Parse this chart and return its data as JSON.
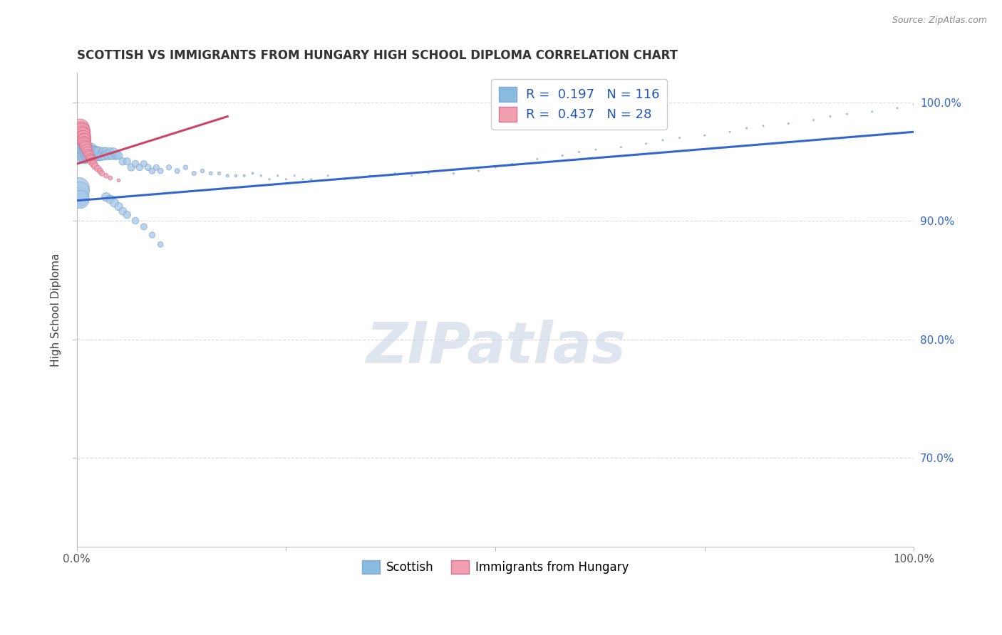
{
  "title": "SCOTTISH VS IMMIGRANTS FROM HUNGARY HIGH SCHOOL DIPLOMA CORRELATION CHART",
  "source": "Source: ZipAtlas.com",
  "ylabel": "High School Diploma",
  "watermark": "ZIPatlas",
  "R_scottish": 0.197,
  "N_scottish": 116,
  "R_hungary": 0.437,
  "N_hungary": 28,
  "scottish_color": "#a8c8e8",
  "scottish_edge": "#80a8cc",
  "hungary_color": "#f0a0b0",
  "hungary_edge": "#d87090",
  "trend_scottish": "#3366cc",
  "trend_hungary": "#cc4466",
  "legend_blue_patch": "#88bbdd",
  "legend_pink_patch": "#f0a0b0",
  "ytick_vals": [
    0.7,
    0.8,
    0.9,
    1.0
  ],
  "ytick_labels": [
    "70.0%",
    "80.0%",
    "90.0%",
    "100.0%"
  ],
  "xlim": [
    0.0,
    1.0
  ],
  "ylim": [
    0.625,
    1.025
  ],
  "trend_s_x0": 0.0,
  "trend_s_y0": 0.917,
  "trend_s_x1": 1.0,
  "trend_s_y1": 0.975,
  "trend_h_x0": 0.0,
  "trend_h_y0": 0.948,
  "trend_h_x1": 0.18,
  "trend_h_y1": 0.988,
  "scottish_x": [
    0.005,
    0.006,
    0.007,
    0.008,
    0.008,
    0.009,
    0.009,
    0.01,
    0.01,
    0.011,
    0.011,
    0.012,
    0.012,
    0.013,
    0.013,
    0.014,
    0.015,
    0.015,
    0.016,
    0.016,
    0.017,
    0.018,
    0.018,
    0.019,
    0.02,
    0.021,
    0.022,
    0.023,
    0.024,
    0.025,
    0.026,
    0.027,
    0.028,
    0.03,
    0.032,
    0.033,
    0.035,
    0.036,
    0.038,
    0.04,
    0.042,
    0.044,
    0.046,
    0.048,
    0.05,
    0.055,
    0.06,
    0.065,
    0.07,
    0.075,
    0.08,
    0.085,
    0.09,
    0.095,
    0.1,
    0.11,
    0.12,
    0.13,
    0.14,
    0.15,
    0.16,
    0.17,
    0.18,
    0.19,
    0.2,
    0.21,
    0.22,
    0.23,
    0.24,
    0.25,
    0.26,
    0.27,
    0.28,
    0.3,
    0.32,
    0.35,
    0.38,
    0.4,
    0.42,
    0.45,
    0.48,
    0.5,
    0.52,
    0.55,
    0.58,
    0.6,
    0.62,
    0.65,
    0.68,
    0.7,
    0.72,
    0.75,
    0.78,
    0.8,
    0.82,
    0.85,
    0.88,
    0.9,
    0.92,
    0.95,
    0.98,
    1.0,
    0.003,
    0.003,
    0.004,
    0.004,
    0.035,
    0.04,
    0.045,
    0.05,
    0.055,
    0.06,
    0.07,
    0.08,
    0.09,
    0.1
  ],
  "scottish_y": [
    0.97,
    0.965,
    0.965,
    0.96,
    0.958,
    0.958,
    0.955,
    0.958,
    0.955,
    0.958,
    0.955,
    0.96,
    0.956,
    0.958,
    0.955,
    0.955,
    0.958,
    0.955,
    0.958,
    0.956,
    0.96,
    0.958,
    0.955,
    0.958,
    0.958,
    0.956,
    0.958,
    0.955,
    0.958,
    0.958,
    0.955,
    0.958,
    0.955,
    0.955,
    0.958,
    0.955,
    0.958,
    0.956,
    0.955,
    0.958,
    0.955,
    0.958,
    0.955,
    0.955,
    0.955,
    0.95,
    0.95,
    0.945,
    0.948,
    0.945,
    0.948,
    0.945,
    0.942,
    0.945,
    0.942,
    0.945,
    0.942,
    0.945,
    0.94,
    0.942,
    0.94,
    0.94,
    0.938,
    0.938,
    0.938,
    0.94,
    0.938,
    0.935,
    0.938,
    0.935,
    0.938,
    0.935,
    0.935,
    0.938,
    0.935,
    0.938,
    0.94,
    0.938,
    0.94,
    0.94,
    0.942,
    0.945,
    0.948,
    0.952,
    0.955,
    0.958,
    0.96,
    0.962,
    0.965,
    0.968,
    0.97,
    0.972,
    0.975,
    0.978,
    0.98,
    0.982,
    0.985,
    0.988,
    0.99,
    0.992,
    0.995,
    0.998,
    0.928,
    0.92,
    0.925,
    0.918,
    0.92,
    0.918,
    0.915,
    0.912,
    0.908,
    0.905,
    0.9,
    0.895,
    0.888,
    0.88
  ],
  "scottish_sizes": [
    350,
    320,
    300,
    290,
    280,
    270,
    260,
    250,
    240,
    230,
    220,
    210,
    200,
    195,
    190,
    185,
    180,
    175,
    170,
    165,
    160,
    155,
    150,
    145,
    140,
    135,
    130,
    125,
    120,
    115,
    110,
    105,
    100,
    95,
    90,
    87,
    84,
    81,
    78,
    75,
    72,
    69,
    66,
    63,
    60,
    57,
    54,
    51,
    48,
    45,
    42,
    39,
    36,
    33,
    30,
    27,
    24,
    21,
    18,
    15,
    12,
    10,
    8,
    6,
    5,
    4,
    3,
    3,
    2,
    2,
    2,
    2,
    2,
    2,
    2,
    2,
    2,
    2,
    2,
    2,
    2,
    2,
    2,
    2,
    2,
    2,
    2,
    2,
    2,
    2,
    2,
    2,
    2,
    2,
    2,
    2,
    2,
    2,
    2,
    2,
    2,
    2,
    400,
    380,
    350,
    330,
    80,
    75,
    70,
    65,
    60,
    55,
    48,
    42,
    36,
    30
  ],
  "hungary_x": [
    0.004,
    0.005,
    0.006,
    0.006,
    0.007,
    0.007,
    0.008,
    0.008,
    0.009,
    0.009,
    0.01,
    0.01,
    0.011,
    0.012,
    0.013,
    0.014,
    0.015,
    0.016,
    0.017,
    0.018,
    0.02,
    0.022,
    0.025,
    0.028,
    0.03,
    0.035,
    0.04,
    0.05
  ],
  "hungary_y": [
    0.978,
    0.976,
    0.975,
    0.973,
    0.972,
    0.97,
    0.97,
    0.968,
    0.968,
    0.966,
    0.965,
    0.963,
    0.962,
    0.96,
    0.958,
    0.956,
    0.955,
    0.953,
    0.952,
    0.95,
    0.948,
    0.946,
    0.944,
    0.942,
    0.94,
    0.938,
    0.936,
    0.934
  ],
  "hungary_sizes": [
    350,
    320,
    300,
    280,
    260,
    240,
    220,
    200,
    180,
    160,
    150,
    140,
    130,
    120,
    110,
    100,
    90,
    80,
    72,
    64,
    56,
    48,
    40,
    34,
    28,
    22,
    16,
    10
  ]
}
